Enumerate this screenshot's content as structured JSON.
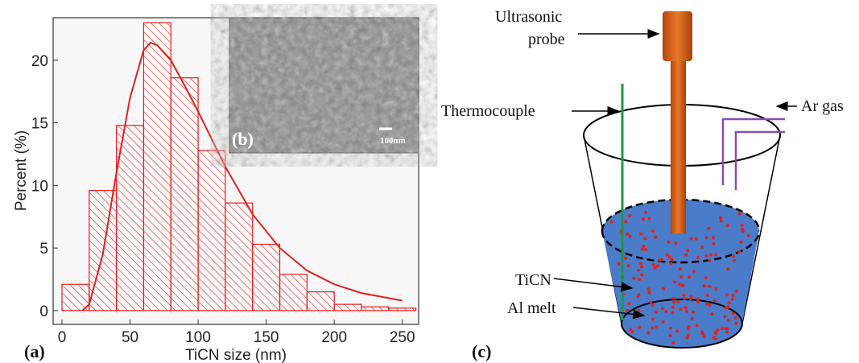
{
  "chart_data": {
    "type": "histogram",
    "x_label": "TiCN size (nm)",
    "y_label": "Percent (%)",
    "panel_label": "(a)",
    "bins": [
      0,
      20,
      40,
      60,
      80,
      100,
      120,
      140,
      160,
      180,
      200,
      220,
      240,
      260
    ],
    "values": [
      2.1,
      9.6,
      14.8,
      23.0,
      18.6,
      12.8,
      8.6,
      5.3,
      2.9,
      1.5,
      0.5,
      0.3,
      0.2
    ],
    "color": "#e02020",
    "curve": {
      "color": "#e02020",
      "x": [
        15,
        20,
        30,
        40,
        50,
        60,
        65,
        70,
        80,
        90,
        100,
        110,
        120,
        140,
        160,
        180,
        200,
        220,
        250
      ],
      "values": [
        0,
        0.5,
        4.5,
        11,
        17,
        20.8,
        21.4,
        21.2,
        20,
        18,
        15.9,
        13.7,
        11.5,
        7.7,
        5,
        3.2,
        2.1,
        1.4,
        0.8
      ]
    },
    "xlim": [
      -6.5,
      262
    ],
    "ylim": [
      -1.1,
      23.4
    ],
    "xticks": [
      0,
      50,
      100,
      150,
      200,
      250
    ],
    "yticks": [
      0,
      5,
      10,
      15,
      20
    ],
    "inset": {
      "label": "(b)",
      "scale_bar": "100nm"
    }
  },
  "diagram": {
    "label": "(c)",
    "probe": [
      "Ultrasonic",
      "probe"
    ],
    "thermocouple": "Thermocouple",
    "gas": "Ar gas",
    "particles": "TiCN",
    "melt": "Al melt"
  }
}
